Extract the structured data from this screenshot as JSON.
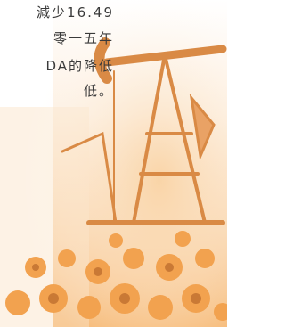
{
  "paragraph": {
    "lines": [
      "減少16.49",
      "零一五年",
      "DA的降低",
      "低。"
    ]
  }
}
